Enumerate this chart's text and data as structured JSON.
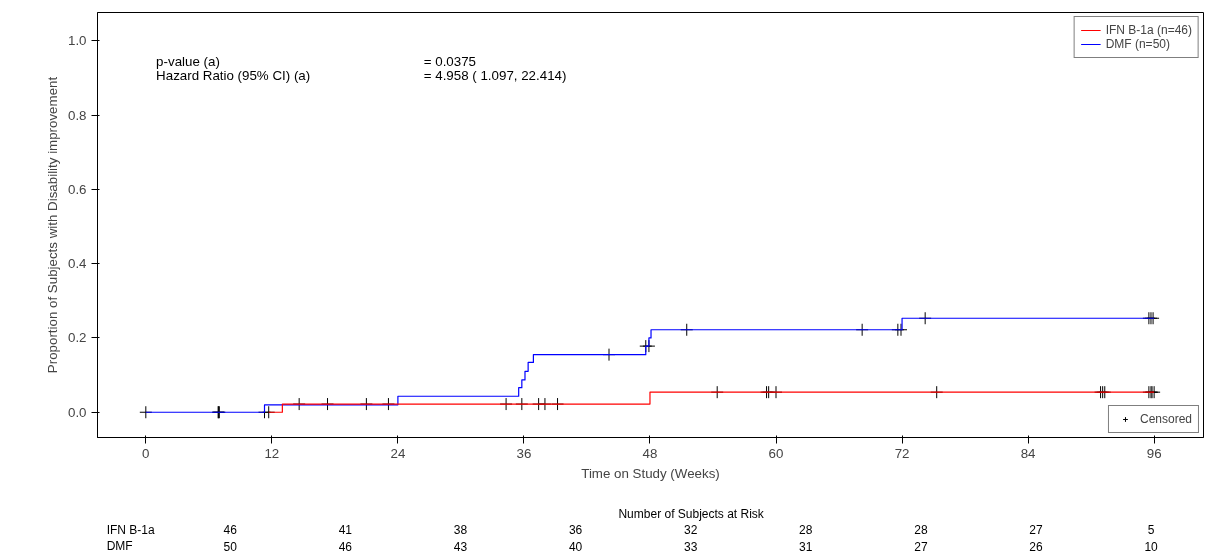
{
  "chart_data": {
    "type": "step",
    "xlabel": "Time on Study (Weeks)",
    "ylabel": "Proportion of Subjects with Disability improvement",
    "xlim": [
      -4.6,
      100.7
    ],
    "ylim": [
      -0.068,
      1.076
    ],
    "xticks": [
      0,
      12,
      24,
      36,
      48,
      60,
      72,
      84,
      96
    ],
    "yticks": [
      {
        "value": 0,
        "label": "0.0"
      },
      {
        "value": 0.2,
        "label": "0.2"
      },
      {
        "value": 0.4,
        "label": "0.4"
      },
      {
        "value": 0.6,
        "label": "0.6"
      },
      {
        "value": 0.8,
        "label": "0.8"
      },
      {
        "value": 1.0,
        "label": "1.0"
      }
    ],
    "grid": false,
    "legend": "top right",
    "series": [
      {
        "name": "IFN B-1a (n=46)",
        "color": "#ff0000",
        "line_style": "solid",
        "x": [
          11.7,
          13,
          48,
          96
        ],
        "values": [
          0,
          0.022,
          0.054,
          0.054
        ]
      },
      {
        "name": "DMF (n=50)",
        "color": "#0000ff",
        "line_style": "solid",
        "x": [
          0,
          11.3,
          24,
          35.5,
          35.8,
          36.1,
          36.4,
          36.9,
          47.6,
          47.9,
          48.1,
          72,
          96
        ],
        "values": [
          0,
          0.02,
          0.043,
          0.066,
          0.087,
          0.11,
          0.134,
          0.155,
          0.178,
          0.2,
          0.222,
          0.253,
          0.253
        ]
      },
      {
        "name": "Censored",
        "color": "#000000",
        "type": "scatter",
        "marker": "cross",
        "x": [
          0,
          6.9,
          7.0,
          11.7,
          14.6,
          17.3,
          21.0,
          23.1,
          34.3,
          35.8,
          37.4,
          38.0,
          39.2,
          54.4,
          59.1,
          59.3,
          60.0,
          75.3,
          90.9,
          91.1,
          91.3,
          95.5,
          95.7,
          95.8,
          96.0,
          6.9,
          11.3,
          44.1,
          47.6,
          47.9,
          51.5,
          68.2,
          71.6,
          71.9,
          74.2,
          95.5,
          95.7,
          95.9
        ],
        "values": [
          0,
          0,
          0,
          0,
          0.022,
          0.022,
          0.022,
          0.022,
          0.022,
          0.022,
          0.022,
          0.022,
          0.022,
          0.054,
          0.054,
          0.054,
          0.054,
          0.054,
          0.054,
          0.054,
          0.054,
          0.054,
          0.054,
          0.054,
          0.054,
          0,
          0,
          0.155,
          0.178,
          0.178,
          0.222,
          0.222,
          0.222,
          0.222,
          0.253,
          0.253,
          0.253,
          0.253
        ]
      }
    ],
    "annotations": [
      "p-value (a)",
      "= 0.0375",
      "Hazard Ratio (95% CI) (a)",
      "= 4.958 ( 1.097, 22.414)",
      "Number of Subjects at Risk",
      "IFN B-1a",
      "46",
      "41",
      "38",
      "36",
      "32",
      "28",
      "28",
      "27",
      "5",
      "DMF",
      "50",
      "46",
      "43",
      "40",
      "33",
      "31",
      "27",
      "26",
      "10"
    ]
  }
}
